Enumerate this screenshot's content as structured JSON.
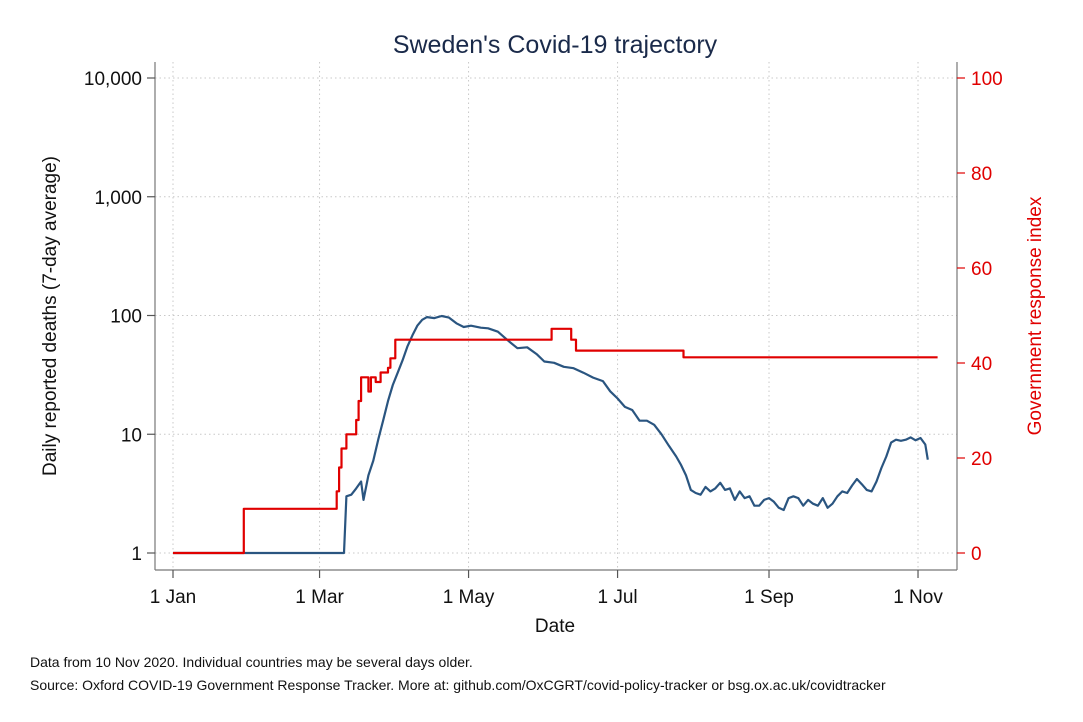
{
  "chart_data": {
    "type": "line",
    "title": "Sweden's Covid-19 trajectory",
    "xlabel": "Date",
    "ylabel_left": "Daily reported deaths (7-day average)",
    "ylabel_right": "Government response index",
    "x_range": [
      "2020-01-01",
      "2020-11-10"
    ],
    "x_ticks": [
      {
        "date": "2020-01-01",
        "label": "1 Jan"
      },
      {
        "date": "2020-03-01",
        "label": "1 Mar"
      },
      {
        "date": "2020-05-01",
        "label": "1 May"
      },
      {
        "date": "2020-07-01",
        "label": "1 Jul"
      },
      {
        "date": "2020-09-01",
        "label": "1 Sep"
      },
      {
        "date": "2020-11-01",
        "label": "1 Nov"
      }
    ],
    "y_left": {
      "scale": "log",
      "range": [
        1,
        10000
      ],
      "ticks": [
        {
          "value": 1,
          "label": "1"
        },
        {
          "value": 10,
          "label": "10"
        },
        {
          "value": 100,
          "label": "100"
        },
        {
          "value": 1000,
          "label": "1,000"
        },
        {
          "value": 10000,
          "label": "10,000"
        }
      ]
    },
    "y_right": {
      "scale": "linear",
      "range": [
        0,
        100
      ],
      "ticks": [
        {
          "value": 0,
          "label": "0"
        },
        {
          "value": 20,
          "label": "20"
        },
        {
          "value": 40,
          "label": "40"
        },
        {
          "value": 60,
          "label": "60"
        },
        {
          "value": 80,
          "label": "80"
        },
        {
          "value": 100,
          "label": "100"
        }
      ]
    },
    "grid": true,
    "series": [
      {
        "axis": "left",
        "color": "#2a5580",
        "points": [
          [
            "2020-01-01",
            1
          ],
          [
            "2020-03-11",
            1
          ],
          [
            "2020-03-12",
            3
          ],
          [
            "2020-03-14",
            3.1
          ],
          [
            "2020-03-16",
            3.5
          ],
          [
            "2020-03-18",
            4
          ],
          [
            "2020-03-19",
            2.8
          ],
          [
            "2020-03-21",
            4.5
          ],
          [
            "2020-03-23",
            6
          ],
          [
            "2020-03-25",
            9
          ],
          [
            "2020-03-27",
            13
          ],
          [
            "2020-03-29",
            19
          ],
          [
            "2020-03-31",
            26
          ],
          [
            "2020-04-02",
            33
          ],
          [
            "2020-04-04",
            42
          ],
          [
            "2020-04-06",
            55
          ],
          [
            "2020-04-08",
            68
          ],
          [
            "2020-04-10",
            82
          ],
          [
            "2020-04-12",
            92
          ],
          [
            "2020-04-14",
            97
          ],
          [
            "2020-04-17",
            95
          ],
          [
            "2020-04-20",
            99
          ],
          [
            "2020-04-23",
            96
          ],
          [
            "2020-04-26",
            86
          ],
          [
            "2020-04-29",
            80
          ],
          [
            "2020-05-02",
            82
          ],
          [
            "2020-05-06",
            79
          ],
          [
            "2020-05-09",
            78
          ],
          [
            "2020-05-13",
            73
          ],
          [
            "2020-05-17",
            62
          ],
          [
            "2020-05-21",
            53
          ],
          [
            "2020-05-25",
            54
          ],
          [
            "2020-05-29",
            47
          ],
          [
            "2020-06-01",
            41
          ],
          [
            "2020-06-05",
            40
          ],
          [
            "2020-06-09",
            37
          ],
          [
            "2020-06-13",
            36
          ],
          [
            "2020-06-17",
            33
          ],
          [
            "2020-06-21",
            30
          ],
          [
            "2020-06-25",
            28
          ],
          [
            "2020-06-28",
            23
          ],
          [
            "2020-07-01",
            20
          ],
          [
            "2020-07-04",
            17
          ],
          [
            "2020-07-07",
            16
          ],
          [
            "2020-07-10",
            13
          ],
          [
            "2020-07-13",
            13
          ],
          [
            "2020-07-16",
            12
          ],
          [
            "2020-07-19",
            10
          ],
          [
            "2020-07-22",
            8
          ],
          [
            "2020-07-25",
            6.5
          ],
          [
            "2020-07-27",
            5.5
          ],
          [
            "2020-07-29",
            4.5
          ],
          [
            "2020-07-31",
            3.4
          ],
          [
            "2020-08-02",
            3.2
          ],
          [
            "2020-08-04",
            3.1
          ],
          [
            "2020-08-06",
            3.6
          ],
          [
            "2020-08-08",
            3.3
          ],
          [
            "2020-08-10",
            3.5
          ],
          [
            "2020-08-12",
            3.9
          ],
          [
            "2020-08-14",
            3.4
          ],
          [
            "2020-08-16",
            3.5
          ],
          [
            "2020-08-18",
            2.8
          ],
          [
            "2020-08-20",
            3.3
          ],
          [
            "2020-08-22",
            2.9
          ],
          [
            "2020-08-24",
            3.0
          ],
          [
            "2020-08-26",
            2.5
          ],
          [
            "2020-08-28",
            2.5
          ],
          [
            "2020-08-30",
            2.8
          ],
          [
            "2020-09-01",
            2.9
          ],
          [
            "2020-09-03",
            2.7
          ],
          [
            "2020-09-05",
            2.4
          ],
          [
            "2020-09-07",
            2.3
          ],
          [
            "2020-09-09",
            2.9
          ],
          [
            "2020-09-11",
            3.0
          ],
          [
            "2020-09-13",
            2.9
          ],
          [
            "2020-09-15",
            2.5
          ],
          [
            "2020-09-17",
            2.8
          ],
          [
            "2020-09-19",
            2.6
          ],
          [
            "2020-09-21",
            2.5
          ],
          [
            "2020-09-23",
            2.9
          ],
          [
            "2020-09-25",
            2.4
          ],
          [
            "2020-09-27",
            2.6
          ],
          [
            "2020-09-29",
            3.0
          ],
          [
            "2020-10-01",
            3.3
          ],
          [
            "2020-10-03",
            3.2
          ],
          [
            "2020-10-05",
            3.7
          ],
          [
            "2020-10-07",
            4.2
          ],
          [
            "2020-10-09",
            3.8
          ],
          [
            "2020-10-11",
            3.4
          ],
          [
            "2020-10-13",
            3.3
          ],
          [
            "2020-10-15",
            4.0
          ],
          [
            "2020-10-17",
            5.2
          ],
          [
            "2020-10-19",
            6.5
          ],
          [
            "2020-10-21",
            8.5
          ],
          [
            "2020-10-23",
            9.0
          ],
          [
            "2020-10-25",
            8.8
          ],
          [
            "2020-10-27",
            9.0
          ],
          [
            "2020-10-29",
            9.4
          ],
          [
            "2020-10-31",
            8.9
          ],
          [
            "2020-11-02",
            9.3
          ],
          [
            "2020-11-04",
            8.2
          ],
          [
            "2020-11-05",
            6.1
          ]
        ]
      },
      {
        "axis": "right",
        "step": true,
        "color": "#e00000",
        "points": [
          [
            "2020-01-01",
            0
          ],
          [
            "2020-01-30",
            9.3
          ],
          [
            "2020-03-08",
            13
          ],
          [
            "2020-03-09",
            18
          ],
          [
            "2020-03-10",
            22
          ],
          [
            "2020-03-12",
            25
          ],
          [
            "2020-03-16",
            28
          ],
          [
            "2020-03-17",
            32
          ],
          [
            "2020-03-18",
            37
          ],
          [
            "2020-03-21",
            34
          ],
          [
            "2020-03-22",
            37
          ],
          [
            "2020-03-24",
            36
          ],
          [
            "2020-03-26",
            38
          ],
          [
            "2020-03-29",
            39
          ],
          [
            "2020-03-30",
            41
          ],
          [
            "2020-04-01",
            44.9
          ],
          [
            "2020-06-04",
            47.2
          ],
          [
            "2020-06-12",
            44.9
          ],
          [
            "2020-06-14",
            42.6
          ],
          [
            "2020-07-28",
            41.2
          ],
          [
            "2020-11-09",
            41.2
          ]
        ]
      }
    ]
  },
  "notes": {
    "data_note": "Data from 10 Nov 2020. Individual countries may be several days older.",
    "source_note": "Source: Oxford COVID-19 Government Response Tracker. More at: github.com/OxCGRT/covid-policy-tracker or bsg.ox.ac.uk/covidtracker"
  }
}
